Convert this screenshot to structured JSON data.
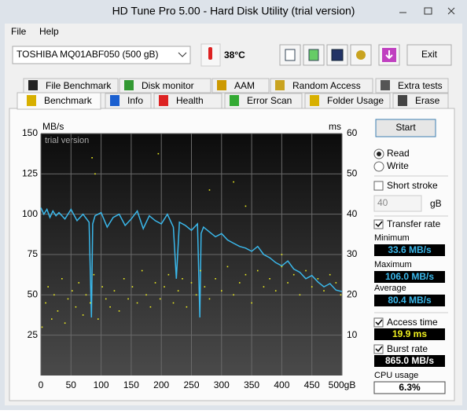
{
  "window": {
    "title": "HD Tune Pro 5.00 - Hard Disk Utility (trial version)",
    "menu": [
      "File",
      "Help"
    ]
  },
  "toolbar": {
    "drive": "TOSHIBA MQ01ABF050 (500 gB)",
    "temperature": "38°C",
    "exit": "Exit"
  },
  "tabs": {
    "row1": [
      "File Benchmark",
      "Disk monitor",
      "AAM",
      "Random Access",
      "Extra tests"
    ],
    "row2": [
      "Benchmark",
      "Info",
      "Health",
      "Error Scan",
      "Folder Usage",
      "Erase"
    ]
  },
  "chart_data": {
    "type": "line",
    "y_label": "MB/s",
    "y2_label": "ms",
    "watermark": "trial version",
    "xlim": [
      0,
      500
    ],
    "xticks": [
      0,
      50,
      100,
      150,
      200,
      250,
      300,
      350,
      400,
      450,
      {
        "value": 500,
        "label": "500gB"
      }
    ],
    "ylim": [
      0,
      150
    ],
    "yticks": [
      25,
      50,
      75,
      100,
      125,
      150
    ],
    "y2lim": [
      0,
      60
    ],
    "y2ticks": [
      10,
      20,
      30,
      40,
      50,
      60
    ],
    "grid": true,
    "series": [
      {
        "name": "Transfer rate",
        "type": "line",
        "color": "#3ab7ea",
        "x": [
          0,
          5,
          10,
          15,
          20,
          25,
          30,
          40,
          50,
          60,
          70,
          80,
          84,
          86,
          90,
          100,
          110,
          120,
          130,
          140,
          150,
          160,
          170,
          180,
          190,
          200,
          210,
          220,
          225,
          230,
          240,
          250,
          260,
          264,
          266,
          270,
          280,
          290,
          300,
          310,
          320,
          330,
          340,
          350,
          360,
          370,
          380,
          390,
          400,
          410,
          420,
          430,
          440,
          450,
          460,
          470,
          480,
          490,
          500
        ],
        "values": [
          104,
          100,
          103,
          98,
          102,
          99,
          101,
          97,
          103,
          96,
          100,
          95,
          36,
          94,
          99,
          101,
          92,
          98,
          100,
          93,
          97,
          102,
          91,
          99,
          96,
          94,
          100,
          92,
          60,
          95,
          93,
          90,
          94,
          36,
          88,
          92,
          89,
          86,
          88,
          84,
          82,
          80,
          79,
          77,
          80,
          75,
          73,
          70,
          68,
          71,
          66,
          64,
          60,
          62,
          58,
          55,
          57,
          53,
          52
        ]
      },
      {
        "name": "Access time",
        "type": "scatter",
        "axis": "y2",
        "color": "#f0f020",
        "x": [
          2,
          8,
          12,
          18,
          22,
          28,
          35,
          40,
          45,
          52,
          58,
          63,
          70,
          75,
          82,
          88,
          95,
          102,
          108,
          115,
          122,
          130,
          138,
          145,
          152,
          160,
          168,
          175,
          182,
          190,
          198,
          205,
          212,
          220,
          228,
          235,
          242,
          250,
          258,
          265,
          272,
          280,
          290,
          300,
          310,
          320,
          330,
          340,
          350,
          360,
          370,
          380,
          390,
          400,
          410,
          420,
          430,
          440,
          450,
          460,
          470,
          480,
          490,
          498,
          85,
          90,
          195,
          280,
          320,
          340,
          400
        ],
        "values": [
          12,
          18,
          22,
          14,
          20,
          16,
          24,
          13,
          19,
          21,
          17,
          23,
          15,
          20,
          18,
          25,
          14,
          22,
          19,
          17,
          21,
          16,
          24,
          19,
          22,
          18,
          26,
          20,
          17,
          23,
          19,
          22,
          25,
          18,
          21,
          24,
          17,
          23,
          20,
          26,
          22,
          19,
          24,
          21,
          27,
          20,
          23,
          25,
          18,
          26,
          22,
          24,
          21,
          27,
          23,
          25,
          20,
          26,
          22,
          24,
          21,
          25,
          23,
          20,
          54,
          50,
          55,
          46,
          48,
          42,
          30
        ]
      }
    ]
  },
  "panel": {
    "start": "Start",
    "read": "Read",
    "write": "Write",
    "short_stroke": "Short stroke",
    "stroke_size": "40",
    "stroke_unit": "gB",
    "minimum": "Minimum",
    "minimum_value": "33.6 MB/s",
    "maximum": "Maximum",
    "maximum_value": "106.0 MB/s",
    "average": "Average",
    "average_value": "80.4 MB/s",
    "access_time_value": "19.9 ms",
    "burst_rate": "Burst rate",
    "burst_rate_value": "865.0 MB/s",
    "cpu_usage": "CPU usage",
    "cpu_usage_value": "6.3%"
  }
}
